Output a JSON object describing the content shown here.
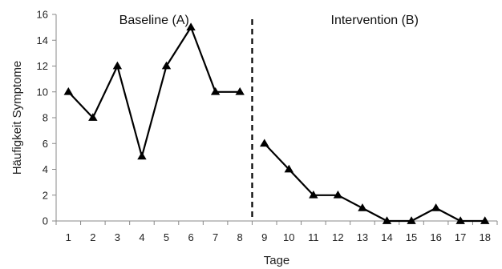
{
  "chart_data": {
    "type": "line",
    "xlabel": "Tage",
    "ylabel": "Häufigkeit Symptome",
    "xlim": [
      0.5,
      18.5
    ],
    "ylim": [
      0,
      16
    ],
    "y_ticks": [
      "0",
      "2",
      "4",
      "6",
      "8",
      "10",
      "12",
      "14",
      "16"
    ],
    "x_ticks": [
      "1",
      "2",
      "3",
      "4",
      "5",
      "6",
      "7",
      "8",
      "9",
      "10",
      "11",
      "12",
      "13",
      "14",
      "15",
      "16",
      "17",
      "18"
    ],
    "grid": false,
    "marker": "triangle",
    "phase_divider_x": 8.5,
    "phases": [
      {
        "label": "Baseline (A)",
        "x": [
          1,
          2,
          3,
          4,
          5,
          6,
          7,
          8
        ],
        "y": [
          10,
          8,
          12,
          5,
          12,
          15,
          10,
          10
        ]
      },
      {
        "label": "Intervention (B)",
        "x": [
          9,
          10,
          11,
          12,
          13,
          14,
          15,
          16,
          17,
          18
        ],
        "y": [
          6,
          4,
          2,
          2,
          1,
          0,
          0,
          1,
          0,
          0
        ]
      }
    ],
    "colors": {
      "line": "#000000",
      "axis": "#888888",
      "divider": "#000000"
    }
  }
}
